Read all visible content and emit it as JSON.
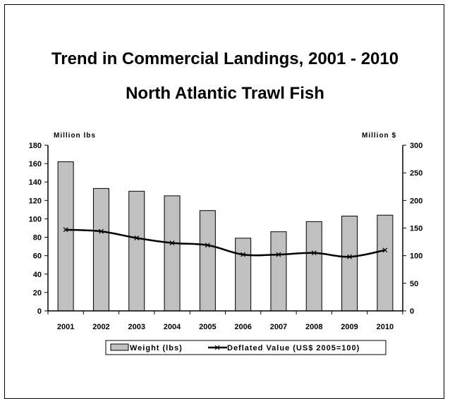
{
  "chart_data": {
    "type": "bar",
    "title": "Trend in Commercial Landings, 2001 - 2010",
    "subtitle": "North Atlantic Trawl Fish",
    "categories": [
      "2001",
      "2002",
      "2003",
      "2004",
      "2005",
      "2006",
      "2007",
      "2008",
      "2009",
      "2010"
    ],
    "y_left_label": "Million lbs",
    "y_right_label": "Million $",
    "ylim_left": [
      0,
      180
    ],
    "ylim_right": [
      0,
      300
    ],
    "yticks_left": [
      "0",
      "20",
      "40",
      "60",
      "80",
      "100",
      "120",
      "140",
      "160",
      "180"
    ],
    "yticks_right": [
      "0",
      "50",
      "100",
      "150",
      "200",
      "250",
      "300"
    ],
    "series": [
      {
        "name": "Weight (lbs)",
        "type": "bar",
        "axis": "left",
        "color": "#c0c0c0",
        "values": [
          162,
          133,
          130,
          125,
          109,
          79,
          86,
          97,
          103,
          104
        ]
      },
      {
        "name": "Deflated Value (US$ 2005=100)",
        "type": "line",
        "axis": "right",
        "color": "#000000",
        "values": [
          147,
          144,
          132,
          123,
          119,
          102,
          102,
          105,
          98,
          110
        ]
      }
    ],
    "legend_position": "bottom",
    "grid": false
  }
}
